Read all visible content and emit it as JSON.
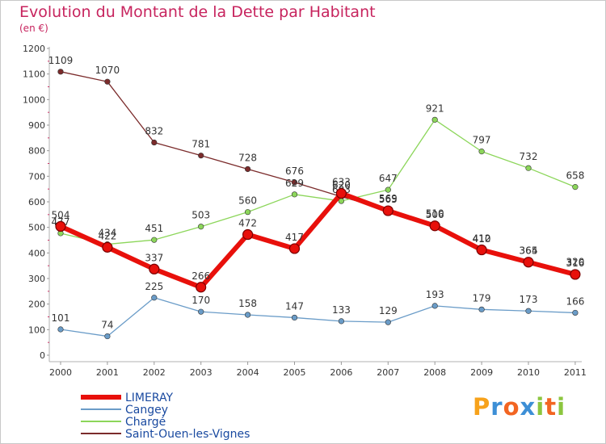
{
  "header": {
    "title": "Evolution du Montant de la Dette par Habitant",
    "subtitle": "(en €)"
  },
  "logo": {
    "letters": [
      "P",
      "r",
      "o",
      "x",
      "i",
      "t",
      "i"
    ],
    "colors": [
      "#f7a21b",
      "#3d8fd6",
      "#f26522",
      "#3d8fd6",
      "#8cc63f",
      "#f26522",
      "#8cc63f"
    ]
  },
  "chart_data": {
    "type": "line",
    "title": "Evolution du Montant de la Dette par Habitant",
    "subtitle": "(en €)",
    "x": [
      "2000",
      "2001",
      "2002",
      "2003",
      "2004",
      "2005",
      "2006",
      "2007",
      "2008",
      "2009",
      "2010",
      "2011"
    ],
    "ylim": [
      0,
      1200
    ],
    "yticks": [
      0,
      100,
      200,
      300,
      400,
      500,
      600,
      700,
      800,
      900,
      1000,
      1100,
      1200
    ],
    "grid": false,
    "legend_position": "bottom-left",
    "series": [
      {
        "name": "Saint-Ouen-les-Vignes",
        "color": "#7b2b2b",
        "values": [
          1109,
          1070,
          832,
          781,
          728,
          676,
          620,
          569,
          510,
          410,
          365,
          320
        ]
      },
      {
        "name": "Chargé",
        "color": "#8cd65a",
        "values": [
          477,
          434,
          451,
          503,
          560,
          629,
          603,
          647,
          921,
          797,
          732,
          658
        ]
      },
      {
        "name": "Cangey",
        "color": "#6a9cc8",
        "values": [
          101,
          74,
          225,
          170,
          158,
          147,
          133,
          129,
          193,
          179,
          173,
          166
        ]
      },
      {
        "name": "LIMERAY",
        "color": "#e8100b",
        "values": [
          504,
          422,
          337,
          266,
          472,
          417,
          633,
          565,
          506,
          412,
          364,
          316
        ]
      }
    ]
  }
}
